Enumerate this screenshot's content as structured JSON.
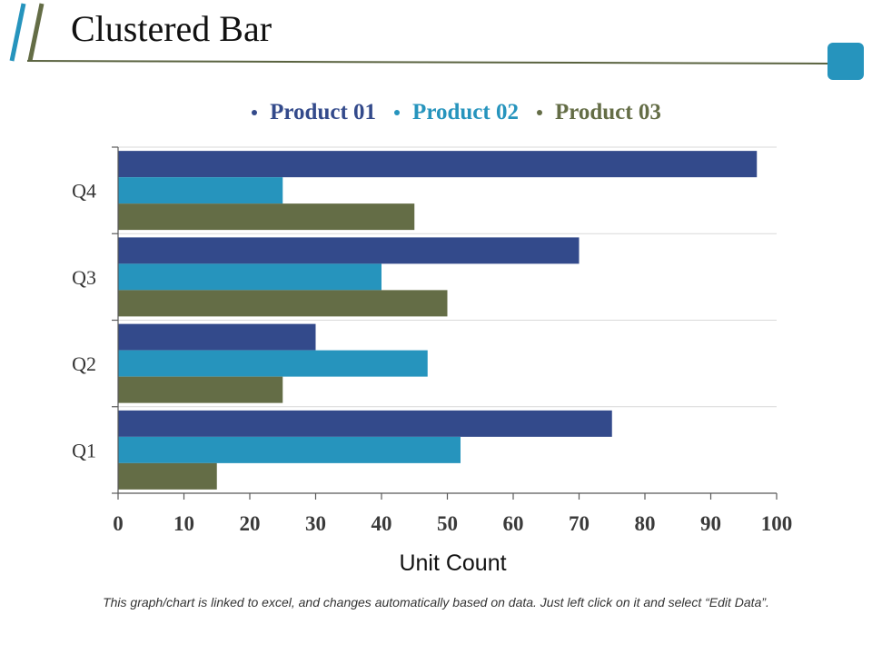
{
  "slide": {
    "title": "Clustered Bar",
    "footnote": "This graph/chart is linked to excel, and changes automatically based on data. Just left click on it and select “Edit Data”."
  },
  "colors": {
    "product01": "#334a8b",
    "product02": "#2694bd",
    "product03": "#646d46",
    "accent": "#2694bd"
  },
  "chart_data": {
    "type": "bar",
    "orientation": "horizontal",
    "categories": [
      "Q1",
      "Q2",
      "Q3",
      "Q4"
    ],
    "series": [
      {
        "name": "Product 01",
        "values": [
          75,
          30,
          70,
          97
        ]
      },
      {
        "name": "Product 02",
        "values": [
          52,
          47,
          40,
          25
        ]
      },
      {
        "name": "Product 03",
        "values": [
          15,
          25,
          50,
          45
        ]
      }
    ],
    "xlabel": "Unit Count",
    "ylabel": "",
    "xlim": [
      0,
      100
    ],
    "xticks": [
      "0",
      "10",
      "20",
      "30",
      "40",
      "50",
      "60",
      "70",
      "80",
      "90",
      "100"
    ],
    "legend": "top",
    "grid": true
  }
}
